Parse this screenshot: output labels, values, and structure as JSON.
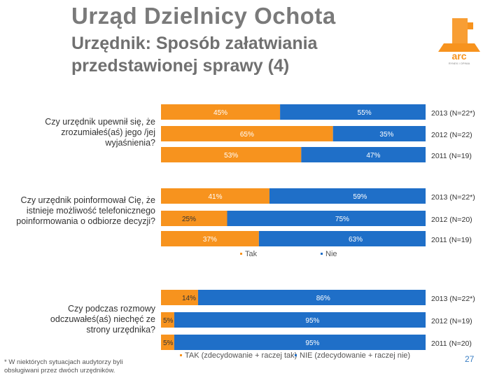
{
  "header": {
    "title": "Urząd Dzielnicy Ochota",
    "subtitle": "Urzędnik: Sposób załatwiania przedstawionej sprawy (4)"
  },
  "logo": {
    "text": "arc",
    "subtext": "RYNEK I OPINIA"
  },
  "colors": {
    "tak": "#f7931e",
    "nie": "#1f6fc8",
    "label_light": "#ffffff"
  },
  "chart_data": {
    "type": "bar",
    "orientation": "horizontal",
    "stacked": true,
    "series_names": [
      "Tak",
      "Nie"
    ],
    "groups": [
      {
        "question": "Czy urzędnik upewnił się, że zrozumiałeś(aś) jego /jej wyjaśnienia?",
        "bars": [
          {
            "year": "2013 (N=22*)",
            "tak": 45,
            "nie": 55,
            "tak_label": "45%",
            "nie_label": "55%"
          },
          {
            "year": "2012 (N=22)",
            "tak": 65,
            "nie": 35,
            "tak_label": "65%",
            "nie_label": "35%"
          },
          {
            "year": "2011 (N=19)",
            "tak": 53,
            "nie": 47,
            "tak_label": "53%",
            "nie_label": "47%"
          }
        ],
        "legend": null
      },
      {
        "question": "Czy urzędnik poinformował Cię, że istnieje możliwość telefonicznego poinformowania o odbiorze decyzji?",
        "bars": [
          {
            "year": "2013 (N=22*)",
            "tak": 41,
            "nie": 59,
            "tak_label": "41%",
            "nie_label": "59%"
          },
          {
            "year": "2012 (N=20)",
            "tak": 25,
            "nie": 75,
            "tak_label": "25%",
            "nie_label": "75%"
          },
          {
            "year": "2011 (N=19)",
            "tak": 37,
            "nie": 63,
            "tak_label": "37%",
            "nie_label": "63%"
          }
        ],
        "legend": [
          "Tak",
          "Nie"
        ]
      },
      {
        "question": "Czy podczas rozmowy odczuwałeś(aś) niechęć ze strony urzędnika?",
        "bars": [
          {
            "year": "2013 (N=22*)",
            "tak": 14,
            "nie": 86,
            "tak_label": "14%",
            "nie_label": "86%"
          },
          {
            "year": "2012 (N=19)",
            "tak": 5,
            "nie": 95,
            "tak_label": "5%",
            "nie_label": "95%"
          },
          {
            "year": "2011 (N=20)",
            "tak": 5,
            "nie": 95,
            "tak_label": "5%",
            "nie_label": "95%"
          }
        ],
        "legend": [
          "TAK (zdecydowanie + raczej tak)",
          "NIE (zdecydowanie + raczej nie)"
        ]
      }
    ]
  },
  "footnote": "* W niektórych sytuacjach audytorzy byli obsługiwani przez dwóch urzędników.",
  "page_number": "27"
}
